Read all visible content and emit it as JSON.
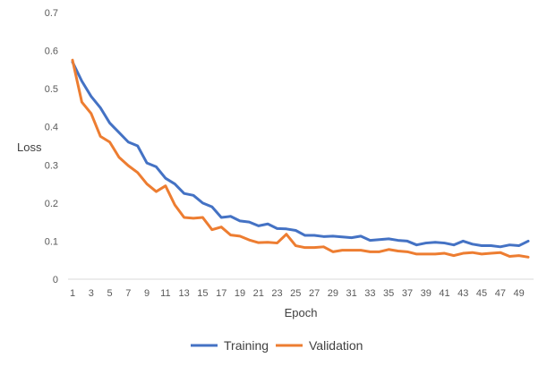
{
  "chart_data": {
    "type": "line",
    "title": "",
    "xlabel": "Epoch",
    "ylabel": "Loss",
    "ylim": [
      0,
      0.7
    ],
    "yticks": [
      "0",
      "0.1",
      "0.2",
      "0.3",
      "0.4",
      "0.5",
      "0.6",
      "0.7"
    ],
    "xticks": [
      "1",
      "3",
      "5",
      "7",
      "9",
      "11",
      "13",
      "15",
      "17",
      "19",
      "21",
      "23",
      "25",
      "27",
      "29",
      "31",
      "33",
      "35",
      "37",
      "39",
      "41",
      "43",
      "45",
      "47",
      "49"
    ],
    "grid": false,
    "legend_position": "bottom",
    "x": [
      1,
      2,
      3,
      4,
      5,
      6,
      7,
      8,
      9,
      10,
      11,
      12,
      13,
      14,
      15,
      16,
      17,
      18,
      19,
      20,
      21,
      22,
      23,
      24,
      25,
      26,
      27,
      28,
      29,
      30,
      31,
      32,
      33,
      34,
      35,
      36,
      37,
      38,
      39,
      40,
      41,
      42,
      43,
      44,
      45,
      46,
      47,
      48,
      49,
      50
    ],
    "series": [
      {
        "name": "Training",
        "color": "#4472C4",
        "values": [
          0.57,
          0.52,
          0.48,
          0.45,
          0.41,
          0.385,
          0.36,
          0.35,
          0.305,
          0.295,
          0.265,
          0.25,
          0.225,
          0.22,
          0.2,
          0.19,
          0.162,
          0.165,
          0.153,
          0.15,
          0.14,
          0.145,
          0.133,
          0.132,
          0.128,
          0.115,
          0.115,
          0.112,
          0.113,
          0.111,
          0.109,
          0.113,
          0.102,
          0.104,
          0.106,
          0.102,
          0.1,
          0.09,
          0.095,
          0.097,
          0.095,
          0.09,
          0.1,
          0.092,
          0.088,
          0.088,
          0.085,
          0.09,
          0.088,
          0.1
        ]
      },
      {
        "name": "Validation",
        "color": "#ED7D31",
        "values": [
          0.575,
          0.465,
          0.435,
          0.375,
          0.36,
          0.32,
          0.298,
          0.28,
          0.25,
          0.23,
          0.245,
          0.195,
          0.162,
          0.16,
          0.162,
          0.13,
          0.137,
          0.116,
          0.113,
          0.103,
          0.096,
          0.097,
          0.095,
          0.118,
          0.088,
          0.083,
          0.083,
          0.085,
          0.072,
          0.076,
          0.076,
          0.076,
          0.072,
          0.072,
          0.078,
          0.074,
          0.072,
          0.066,
          0.066,
          0.066,
          0.068,
          0.062,
          0.068,
          0.07,
          0.066,
          0.068,
          0.07,
          0.06,
          0.062,
          0.058
        ]
      }
    ]
  }
}
